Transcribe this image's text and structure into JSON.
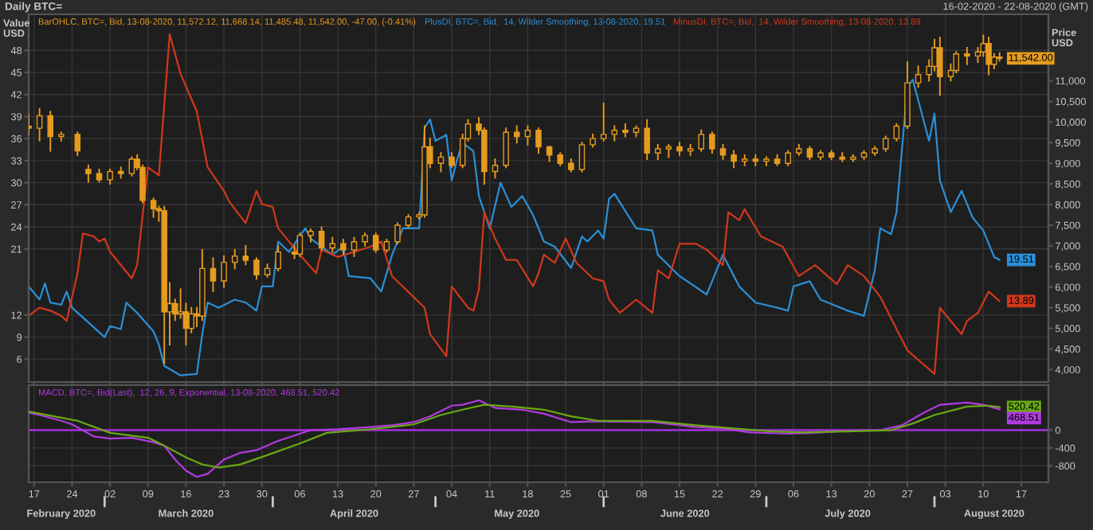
{
  "chart_data": [
    {
      "type": "candlestick",
      "title": "Daily BTC=",
      "subtitle": "16-02-2020 - 22-08-2020 (GMT)",
      "ylabel": "Value USD",
      "y2label": "Price USD",
      "xlim": [
        "2020-02-16",
        "2020-08-22"
      ],
      "xticks": [
        {
          "value": "2020-02-17",
          "label": null
        },
        {
          "value": "2020-02-24",
          "label": null
        },
        {
          "value": "2020-03-02",
          "label": null
        },
        {
          "value": "2020-03-09",
          "label": null
        },
        {
          "value": "2020-03-16",
          "label": null
        },
        {
          "value": "2020-03-23",
          "label": null
        },
        {
          "value": "2020-03-30",
          "label": null
        },
        {
          "value": "2020-04-06",
          "label": null
        },
        {
          "value": "2020-04-13",
          "label": null
        },
        {
          "value": "2020-04-20",
          "label": null
        },
        {
          "value": "2020-04-27",
          "label": null
        },
        {
          "value": "2020-05-04",
          "label": null
        },
        {
          "value": "2020-05-11",
          "label": null
        },
        {
          "value": "2020-05-18",
          "label": null
        },
        {
          "value": "2020-05-25",
          "label": null
        },
        {
          "value": "2020-06-01",
          "label": null
        },
        {
          "value": "2020-06-08",
          "label": null
        },
        {
          "value": "2020-06-15",
          "label": null
        },
        {
          "value": "2020-06-22",
          "label": null
        },
        {
          "value": "2020-06-29",
          "label": null
        },
        {
          "value": "2020-07-06",
          "label": null
        },
        {
          "value": "2020-07-13",
          "label": null
        },
        {
          "value": "2020-07-20",
          "label": null
        },
        {
          "value": "2020-07-27",
          "label": null
        },
        {
          "value": "2020-08-03",
          "label": null
        },
        {
          "value": "2020-08-10",
          "label": null
        },
        {
          "value": "2020-08-17",
          "label": null
        }
      ],
      "ylim": [
        2.9,
        52.9
      ],
      "yticks": [
        6,
        9,
        12,
        21,
        24,
        27,
        30,
        33,
        36,
        39,
        42,
        45,
        48
      ],
      "y2lim": [
        3700,
        12610
      ],
      "y2ticks": [
        {
          "value": 4000,
          "label": "4,000"
        },
        {
          "value": 4500,
          "label": "4,500"
        },
        {
          "value": 5000,
          "label": "5,000"
        },
        {
          "value": 5500,
          "label": "5,500"
        },
        {
          "value": 6000,
          "label": "6,000"
        },
        {
          "value": 6500,
          "label": "6,500"
        },
        {
          "value": 7000,
          "label": "7,000"
        },
        {
          "value": 7500,
          "label": "7,500"
        },
        {
          "value": 8000,
          "label": "8,000"
        },
        {
          "value": 8500,
          "label": "8,500"
        },
        {
          "value": 9000,
          "label": "9,000"
        },
        {
          "value": 9500,
          "label": "9,500"
        },
        {
          "value": 10000,
          "label": "10,000"
        },
        {
          "value": 10500,
          "label": "10,500"
        },
        {
          "value": 11000,
          "label": "11,000"
        }
      ],
      "tick_labels": "y",
      "grid": true,
      "legend": "top left",
      "series": [
        {
          "axis": "y2",
          "name": "BarOHLC, BTC=, Bid, 13-08-2020, 11,572.12, 11,668.14, 11,485.48, 11,542.00, -47.00, (-0.41%)",
          "color": "#e59b1e",
          "x": [
            "2020-02-16",
            "2020-02-18",
            "2020-02-20",
            "2020-02-22",
            "2020-02-25",
            "2020-02-27",
            "2020-02-29",
            "2020-03-02",
            "2020-03-04",
            "2020-03-06",
            "2020-03-07",
            "2020-03-08",
            "2020-03-10",
            "2020-03-11",
            "2020-03-12",
            "2020-03-13",
            "2020-03-14",
            "2020-03-15",
            "2020-03-16",
            "2020-03-17",
            "2020-03-18",
            "2020-03-19",
            "2020-03-21",
            "2020-03-23",
            "2020-03-25",
            "2020-03-27",
            "2020-03-29",
            "2020-03-31",
            "2020-04-02",
            "2020-04-05",
            "2020-04-06",
            "2020-04-08",
            "2020-04-10",
            "2020-04-12",
            "2020-04-14",
            "2020-04-16",
            "2020-04-18",
            "2020-04-20",
            "2020-04-22",
            "2020-04-24",
            "2020-04-26",
            "2020-04-28",
            "2020-04-29",
            "2020-04-30",
            "2020-05-02",
            "2020-05-04",
            "2020-05-06",
            "2020-05-07",
            "2020-05-09",
            "2020-05-10",
            "2020-05-12",
            "2020-05-14",
            "2020-05-16",
            "2020-05-18",
            "2020-05-20",
            "2020-05-22",
            "2020-05-24",
            "2020-05-26",
            "2020-05-28",
            "2020-05-30",
            "2020-06-01",
            "2020-06-03",
            "2020-06-05",
            "2020-06-07",
            "2020-06-09",
            "2020-06-11",
            "2020-06-13",
            "2020-06-15",
            "2020-06-17",
            "2020-06-19",
            "2020-06-21",
            "2020-06-23",
            "2020-06-25",
            "2020-06-27",
            "2020-06-29",
            "2020-07-01",
            "2020-07-03",
            "2020-07-05",
            "2020-07-07",
            "2020-07-09",
            "2020-07-11",
            "2020-07-13",
            "2020-07-15",
            "2020-07-17",
            "2020-07-19",
            "2020-07-21",
            "2020-07-23",
            "2020-07-25",
            "2020-07-27",
            "2020-07-29",
            "2020-07-31",
            "2020-08-01",
            "2020-08-02",
            "2020-08-04",
            "2020-08-05",
            "2020-08-07",
            "2020-08-09",
            "2020-08-10",
            "2020-08-11",
            "2020-08-12",
            "2020-08-13"
          ],
          "ohlc": [
            [
              9900,
              10190,
              9700,
              9850
            ],
            [
              9850,
              10320,
              9550,
              10150
            ],
            [
              10150,
              10250,
              9300,
              9650
            ],
            [
              9650,
              9750,
              9550,
              9700
            ],
            [
              9700,
              9750,
              9200,
              9300
            ],
            [
              8850,
              8950,
              8550,
              8750
            ],
            [
              8750,
              8850,
              8550,
              8600
            ],
            [
              8600,
              8850,
              8500,
              8800
            ],
            [
              8800,
              8900,
              8650,
              8750
            ],
            [
              8750,
              9150,
              8700,
              9100
            ],
            [
              9100,
              9200,
              8850,
              8900
            ],
            [
              8900,
              8950,
              8050,
              8100
            ],
            [
              8100,
              8150,
              7700,
              7900
            ],
            [
              7900,
              7950,
              7600,
              7850
            ],
            [
              7850,
              7950,
              4150,
              5400
            ],
            [
              5400,
              6100,
              4600,
              5600
            ],
            [
              5600,
              5700,
              5200,
              5350
            ],
            [
              5350,
              5950,
              5250,
              5400
            ],
            [
              5400,
              5600,
              4600,
              5000
            ],
            [
              5000,
              5500,
              4900,
              5350
            ],
            [
              5350,
              5500,
              5050,
              5300
            ],
            [
              5300,
              6900,
              5200,
              6450
            ],
            [
              6450,
              6700,
              5900,
              6150
            ],
            [
              6150,
              6750,
              6000,
              6600
            ],
            [
              6600,
              6900,
              6450,
              6750
            ],
            [
              6750,
              7000,
              6550,
              6650
            ],
            [
              6650,
              6700,
              6200,
              6300
            ],
            [
              6300,
              6550,
              6250,
              6450
            ],
            [
              6450,
              7000,
              6400,
              6850
            ],
            [
              6850,
              7000,
              6700,
              6800
            ],
            [
              6800,
              7300,
              6750,
              7250
            ],
            [
              7250,
              7400,
              7100,
              7350
            ],
            [
              7350,
              7450,
              6900,
              6950
            ],
            [
              6950,
              7200,
              6850,
              7050
            ],
            [
              7050,
              7150,
              6800,
              6900
            ],
            [
              6900,
              7200,
              6750,
              7100
            ],
            [
              7100,
              7300,
              7000,
              7250
            ],
            [
              7250,
              7300,
              6850,
              6900
            ],
            [
              6900,
              7150,
              6850,
              7100
            ],
            [
              7100,
              7550,
              7050,
              7500
            ],
            [
              7500,
              7750,
              7450,
              7700
            ],
            [
              7700,
              7800,
              7650,
              7750
            ],
            [
              7750,
              9900,
              7700,
              9400
            ],
            [
              9400,
              9600,
              8900,
              9000
            ],
            [
              9000,
              9250,
              8800,
              9150
            ],
            [
              9150,
              9250,
              8900,
              8950
            ],
            [
              8950,
              9700,
              8900,
              9600
            ],
            [
              9600,
              10050,
              9550,
              9950
            ],
            [
              9950,
              10100,
              9700,
              9800
            ],
            [
              9800,
              9850,
              8500,
              8800
            ],
            [
              8800,
              9100,
              8650,
              8950
            ],
            [
              8950,
              9850,
              8900,
              9750
            ],
            [
              9750,
              9900,
              9500,
              9650
            ],
            [
              9650,
              9900,
              9450,
              9800
            ],
            [
              9800,
              9850,
              9250,
              9400
            ],
            [
              9400,
              9400,
              9050,
              9200
            ],
            [
              9200,
              9250,
              8950,
              9000
            ],
            [
              9000,
              9100,
              8800,
              8850
            ],
            [
              8850,
              9500,
              8800,
              9450
            ],
            [
              9450,
              9700,
              9400,
              9600
            ],
            [
              9600,
              10450,
              9550,
              9700
            ],
            [
              9700,
              9900,
              9550,
              9800
            ],
            [
              9800,
              9950,
              9650,
              9750
            ],
            [
              9750,
              9900,
              9650,
              9850
            ],
            [
              9850,
              10050,
              9100,
              9250
            ],
            [
              9250,
              9450,
              9100,
              9350
            ],
            [
              9350,
              9450,
              9150,
              9400
            ],
            [
              9400,
              9500,
              9200,
              9300
            ],
            [
              9300,
              9450,
              9200,
              9350
            ],
            [
              9350,
              9800,
              9300,
              9700
            ],
            [
              9700,
              9750,
              9250,
              9350
            ],
            [
              9350,
              9450,
              9100,
              9200
            ],
            [
              9200,
              9300,
              8900,
              9050
            ],
            [
              9050,
              9200,
              8950,
              9100
            ],
            [
              9100,
              9200,
              8950,
              9050
            ],
            [
              9050,
              9150,
              8950,
              9100
            ],
            [
              9100,
              9200,
              8950,
              9000
            ],
            [
              9000,
              9300,
              8950,
              9250
            ],
            [
              9250,
              9450,
              9200,
              9350
            ],
            [
              9350,
              9400,
              9100,
              9150
            ],
            [
              9150,
              9300,
              9100,
              9250
            ],
            [
              9250,
              9300,
              9100,
              9150
            ],
            [
              9150,
              9250,
              9050,
              9100
            ],
            [
              9100,
              9200,
              9050,
              9150
            ],
            [
              9150,
              9300,
              9100,
              9250
            ],
            [
              9250,
              9400,
              9200,
              9350
            ],
            [
              9350,
              9650,
              9300,
              9600
            ],
            [
              9600,
              9950,
              9550,
              9900
            ],
            [
              9900,
              11450,
              9850,
              10950
            ],
            [
              10950,
              11350,
              10850,
              11150
            ],
            [
              11150,
              11500,
              11000,
              11350
            ],
            [
              11350,
              12000,
              11250,
              11800
            ],
            [
              11800,
              12050,
              10650,
              11100
            ],
            [
              11100,
              11400,
              11000,
              11250
            ],
            [
              11250,
              11700,
              11200,
              11650
            ],
            [
              11650,
              11800,
              11400,
              11600
            ],
            [
              11600,
              11800,
              11450,
              11700
            ],
            [
              11700,
              12100,
              11600,
              11900
            ],
            [
              11900,
              12050,
              11150,
              11400
            ],
            [
              11400,
              11650,
              11300,
              11572.12
            ],
            [
              11572.12,
              11668.14,
              11485.48,
              11542.0
            ]
          ],
          "value_labels": [
            null,
            null,
            null,
            null,
            null,
            null,
            null,
            null,
            null,
            null,
            null,
            null,
            null,
            null,
            null,
            null,
            null,
            null,
            null,
            null,
            null,
            null,
            null,
            null,
            null,
            null,
            null,
            null,
            null,
            null,
            null,
            null,
            null,
            null,
            null,
            null,
            null,
            null,
            null,
            null,
            null,
            null,
            null,
            null,
            null,
            null,
            null,
            null,
            null,
            null,
            null,
            null,
            null,
            null,
            null,
            null,
            null,
            null,
            null,
            null,
            null,
            null,
            null,
            null,
            null,
            null,
            null,
            null,
            null,
            null,
            null,
            null,
            null,
            null,
            null,
            null,
            null,
            null,
            null,
            null,
            null,
            null,
            null,
            null,
            null,
            null,
            null,
            null,
            null,
            null,
            null,
            null,
            null,
            null,
            null,
            null,
            null,
            null,
            null,
            null,
            "11,542.00"
          ]
        },
        {
          "type": "line",
          "axis": "y",
          "name": "PlusDI, BTC=, Bid,  14, Wilder Smoothing, 13-08-2020, 19.51",
          "color": "#2b8fd6",
          "x": [
            "2020-02-16",
            "2020-02-18",
            "2020-02-19",
            "2020-02-20",
            "2020-02-22",
            "2020-02-23",
            "2020-02-24",
            "2020-03-01",
            "2020-03-02",
            "2020-03-04",
            "2020-03-05",
            "2020-03-07",
            "2020-03-10",
            "2020-03-11",
            "2020-03-12",
            "2020-03-15",
            "2020-03-18",
            "2020-03-19",
            "2020-03-20",
            "2020-03-22",
            "2020-03-25",
            "2020-03-27",
            "2020-03-29",
            "2020-03-30",
            "2020-04-01",
            "2020-04-02",
            "2020-04-04",
            "2020-04-07",
            "2020-04-08",
            "2020-04-12",
            "2020-04-14",
            "2020-04-15",
            "2020-04-19",
            "2020-04-21",
            "2020-04-23",
            "2020-04-25",
            "2020-04-28",
            "2020-04-29",
            "2020-04-30",
            "2020-05-01",
            "2020-05-03",
            "2020-05-04",
            "2020-05-05",
            "2020-05-06",
            "2020-05-08",
            "2020-05-09",
            "2020-05-11",
            "2020-05-13",
            "2020-05-15",
            "2020-05-17",
            "2020-05-19",
            "2020-05-21",
            "2020-05-23",
            "2020-05-26",
            "2020-05-28",
            "2020-05-29",
            "2020-05-31",
            "2020-06-01",
            "2020-06-02",
            "2020-06-03",
            "2020-06-07",
            "2020-06-10",
            "2020-06-11",
            "2020-06-15",
            "2020-06-20",
            "2020-06-23",
            "2020-06-26",
            "2020-06-29",
            "2020-07-03",
            "2020-07-05",
            "2020-07-06",
            "2020-07-09",
            "2020-07-11",
            "2020-07-16",
            "2020-07-19",
            "2020-07-21",
            "2020-07-22",
            "2020-07-24",
            "2020-07-25",
            "2020-07-27",
            "2020-07-28",
            "2020-07-31",
            "2020-08-01",
            "2020-08-02",
            "2020-08-04",
            "2020-08-06",
            "2020-08-08",
            "2020-08-10",
            "2020-08-12",
            "2020-08-13"
          ],
          "values": [
            15.9,
            14.1,
            16.3,
            13.7,
            13.4,
            15.2,
            13.0,
            9.0,
            10.5,
            10.1,
            13.7,
            12.3,
            9.8,
            8.0,
            5.1,
            3.8,
            4.0,
            9.4,
            13.7,
            13.0,
            14.1,
            13.7,
            12.6,
            15.9,
            15.9,
            22.0,
            20.6,
            23.8,
            22.4,
            20.2,
            21.3,
            17.3,
            17.0,
            15.2,
            20.2,
            23.8,
            23.8,
            37.5,
            38.6,
            35.7,
            36.5,
            30.3,
            33.2,
            35.4,
            34.3,
            28.2,
            23.8,
            30.0,
            26.7,
            28.2,
            25.6,
            22.0,
            21.3,
            18.4,
            22.7,
            22.0,
            23.5,
            22.4,
            27.8,
            28.5,
            23.8,
            23.5,
            20.2,
            17.3,
            14.8,
            20.2,
            15.9,
            13.7,
            13.0,
            12.6,
            15.9,
            16.6,
            14.1,
            12.6,
            11.9,
            18.1,
            23.8,
            23.0,
            26.0,
            43.0,
            44.0,
            35.7,
            39.4,
            30.3,
            26.0,
            28.9,
            25.3,
            23.5,
            19.9,
            19.51
          ],
          "value_labels": [
            null,
            null,
            null,
            null,
            null,
            null,
            null,
            null,
            null,
            null,
            null,
            null,
            null,
            null,
            null,
            null,
            null,
            null,
            null,
            null,
            null,
            null,
            null,
            null,
            null,
            null,
            null,
            null,
            null,
            null,
            null,
            null,
            null,
            null,
            null,
            null,
            null,
            null,
            null,
            null,
            null,
            null,
            null,
            null,
            null,
            null,
            null,
            null,
            null,
            null,
            null,
            null,
            null,
            null,
            null,
            null,
            null,
            null,
            null,
            null,
            null,
            null,
            null,
            null,
            null,
            null,
            null,
            null,
            null,
            null,
            null,
            null,
            null,
            null,
            null,
            null,
            null,
            null,
            null,
            null,
            null,
            null,
            null,
            null,
            null,
            null,
            null,
            null,
            null,
            "19.51"
          ]
        },
        {
          "type": "line",
          "axis": "y",
          "name": "MinusDI, BTC=, Bid,  14, Wilder Smoothing, 13-08-2020, 13.89",
          "color": "#d0381c",
          "x": [
            "2020-02-16",
            "2020-02-18",
            "2020-02-20",
            "2020-02-22",
            "2020-02-23",
            "2020-02-25",
            "2020-02-26",
            "2020-02-28",
            "2020-02-29",
            "2020-03-01",
            "2020-03-02",
            "2020-03-06",
            "2020-03-07",
            "2020-03-09",
            "2020-03-11",
            "2020-03-13",
            "2020-03-15",
            "2020-03-18",
            "2020-03-20",
            "2020-03-23",
            "2020-03-24",
            "2020-03-27",
            "2020-03-29",
            "2020-03-30",
            "2020-04-01",
            "2020-04-02",
            "2020-04-06",
            "2020-04-09",
            "2020-04-10",
            "2020-04-13",
            "2020-04-19",
            "2020-04-21",
            "2020-04-23",
            "2020-04-29",
            "2020-04-30",
            "2020-05-03",
            "2020-05-04",
            "2020-05-07",
            "2020-05-08",
            "2020-05-09",
            "2020-05-10",
            "2020-05-12",
            "2020-05-14",
            "2020-05-16",
            "2020-05-19",
            "2020-05-20",
            "2020-05-21",
            "2020-05-23",
            "2020-05-25",
            "2020-05-27",
            "2020-05-30",
            "2020-06-01",
            "2020-06-02",
            "2020-06-04",
            "2020-06-07",
            "2020-06-10",
            "2020-06-11",
            "2020-06-13",
            "2020-06-15",
            "2020-06-18",
            "2020-06-20",
            "2020-06-23",
            "2020-06-24",
            "2020-06-26",
            "2020-06-27",
            "2020-06-30",
            "2020-07-04",
            "2020-07-07",
            "2020-07-10",
            "2020-07-14",
            "2020-07-16",
            "2020-07-19",
            "2020-07-22",
            "2020-07-25",
            "2020-07-27",
            "2020-08-01",
            "2020-08-02",
            "2020-08-06",
            "2020-08-07",
            "2020-08-09",
            "2020-08-11",
            "2020-08-13"
          ],
          "values": [
            11.9,
            13.0,
            12.6,
            11.9,
            11.2,
            17.7,
            23.1,
            22.7,
            22.0,
            22.4,
            20.6,
            17.0,
            18.8,
            32.1,
            31.0,
            50.2,
            44.8,
            39.7,
            32.1,
            28.9,
            27.4,
            24.5,
            28.9,
            27.1,
            26.7,
            23.8,
            20.2,
            17.7,
            20.9,
            19.9,
            21.3,
            22.0,
            17.3,
            13.0,
            9.4,
            6.4,
            15.9,
            13.0,
            12.6,
            15.5,
            26.0,
            22.4,
            19.5,
            19.5,
            15.9,
            17.7,
            20.2,
            19.1,
            22.4,
            19.1,
            17.0,
            16.6,
            14.1,
            12.3,
            14.1,
            12.3,
            18.1,
            17.0,
            21.7,
            21.7,
            20.9,
            18.8,
            26.0,
            24.9,
            26.4,
            22.7,
            21.3,
            17.3,
            18.8,
            16.2,
            18.8,
            17.3,
            14.5,
            10.1,
            7.2,
            4.0,
            13.0,
            9.4,
            11.2,
            12.3,
            15.2,
            13.89
          ],
          "value_labels": [
            null,
            null,
            null,
            null,
            null,
            null,
            null,
            null,
            null,
            null,
            null,
            null,
            null,
            null,
            null,
            null,
            null,
            null,
            null,
            null,
            null,
            null,
            null,
            null,
            null,
            null,
            null,
            null,
            null,
            null,
            null,
            null,
            null,
            null,
            null,
            null,
            null,
            null,
            null,
            null,
            null,
            null,
            null,
            null,
            null,
            null,
            null,
            null,
            null,
            null,
            null,
            null,
            null,
            null,
            null,
            null,
            null,
            null,
            null,
            null,
            null,
            null,
            null,
            null,
            null,
            null,
            null,
            null,
            null,
            null,
            null,
            null,
            null,
            null,
            null,
            null,
            null,
            null,
            null,
            null,
            null,
            "13.89"
          ]
        }
      ]
    },
    {
      "type": "line",
      "xlim": [
        "2020-02-16",
        "2020-08-22"
      ],
      "xticks": [
        {
          "value": "2020-02-17",
          "label": "17"
        },
        {
          "value": "2020-02-24",
          "label": "24"
        },
        {
          "value": "2020-03-02",
          "label": "02"
        },
        {
          "value": "2020-03-09",
          "label": "09"
        },
        {
          "value": "2020-03-16",
          "label": "16"
        },
        {
          "value": "2020-03-23",
          "label": "23"
        },
        {
          "value": "2020-03-30",
          "label": "30"
        },
        {
          "value": "2020-04-06",
          "label": "06"
        },
        {
          "value": "2020-04-13",
          "label": "13"
        },
        {
          "value": "2020-04-20",
          "label": "20"
        },
        {
          "value": "2020-04-27",
          "label": "27"
        },
        {
          "value": "2020-05-04",
          "label": "04"
        },
        {
          "value": "2020-05-11",
          "label": "11"
        },
        {
          "value": "2020-05-18",
          "label": "18"
        },
        {
          "value": "2020-05-25",
          "label": "25"
        },
        {
          "value": "2020-06-01",
          "label": "01"
        },
        {
          "value": "2020-06-08",
          "label": "08"
        },
        {
          "value": "2020-06-15",
          "label": "15"
        },
        {
          "value": "2020-06-22",
          "label": "22"
        },
        {
          "value": "2020-06-29",
          "label": "29"
        },
        {
          "value": "2020-07-06",
          "label": "06"
        },
        {
          "value": "2020-07-13",
          "label": "13"
        },
        {
          "value": "2020-07-20",
          "label": "20"
        },
        {
          "value": "2020-07-27",
          "label": "27"
        },
        {
          "value": "2020-08-03",
          "label": "03"
        },
        {
          "value": "2020-08-10",
          "label": "10"
        },
        {
          "value": "2020-08-17",
          "label": "17"
        }
      ],
      "x2lim": [
        "2020-02-16",
        "2020-08-22"
      ],
      "x2ticks": [
        {
          "value": "2020-02-22",
          "label": "February 2020"
        },
        {
          "value": "2020-03-01",
          "label": null
        },
        {
          "value": "2020-03-16",
          "label": "March 2020"
        },
        {
          "value": "2020-04-01",
          "label": null
        },
        {
          "value": "2020-04-16",
          "label": "April 2020"
        },
        {
          "value": "2020-05-01",
          "label": null
        },
        {
          "value": "2020-05-16",
          "label": "May 2020"
        },
        {
          "value": "2020-06-01",
          "label": null
        },
        {
          "value": "2020-06-16",
          "label": "June 2020"
        },
        {
          "value": "2020-07-01",
          "label": null
        },
        {
          "value": "2020-07-16",
          "label": "July 2020"
        },
        {
          "value": "2020-08-01",
          "label": null
        },
        {
          "value": "2020-08-12",
          "label": "August 2020"
        }
      ],
      "y2lim": [
        -1170,
        1010
      ],
      "y2ticks": [
        0,
        -400,
        -800
      ],
      "grid": true,
      "legend": "top left",
      "ref_lines": [
        {
          "axis": "y2",
          "value": 0,
          "color": "#a62fe0"
        }
      ],
      "series": [
        {
          "axis": "y2",
          "name": "MACD, BTC=, Bid(Last),  12, 26, 9, Exponential, 13-08-2020, 468.51, 520.42",
          "color": "#b13ae0",
          "x": [
            "2020-02-16",
            "2020-02-18",
            "2020-02-22",
            "2020-02-24",
            "2020-02-28",
            "2020-03-02",
            "2020-03-06",
            "2020-03-10",
            "2020-03-12",
            "2020-03-14",
            "2020-03-16",
            "2020-03-18",
            "2020-03-20",
            "2020-03-23",
            "2020-03-26",
            "2020-03-29",
            "2020-04-02",
            "2020-04-08",
            "2020-04-13",
            "2020-04-19",
            "2020-04-23",
            "2020-04-27",
            "2020-04-30",
            "2020-05-04",
            "2020-05-06",
            "2020-05-09",
            "2020-05-12",
            "2020-05-17",
            "2020-05-21",
            "2020-05-26",
            "2020-05-31",
            "2020-06-03",
            "2020-06-10",
            "2020-06-18",
            "2020-06-23",
            "2020-06-28",
            "2020-07-05",
            "2020-07-10",
            "2020-07-16",
            "2020-07-22",
            "2020-07-26",
            "2020-07-30",
            "2020-08-02",
            "2020-08-07",
            "2020-08-10",
            "2020-08-13"
          ],
          "values": [
            390,
            340,
            210,
            130,
            -140,
            -190,
            -170,
            -270,
            -350,
            -660,
            -910,
            -1050,
            -980,
            -660,
            -510,
            -450,
            -240,
            0,
            20,
            70,
            110,
            180,
            310,
            550,
            570,
            670,
            500,
            460,
            370,
            180,
            200,
            190,
            180,
            70,
            40,
            -50,
            -80,
            -60,
            -10,
            0,
            110,
            390,
            570,
            620,
            570,
            468.51
          ],
          "value_labels": [
            null,
            null,
            null,
            null,
            null,
            null,
            null,
            null,
            null,
            null,
            null,
            null,
            null,
            null,
            null,
            null,
            null,
            null,
            null,
            null,
            null,
            null,
            null,
            null,
            null,
            null,
            null,
            null,
            null,
            null,
            null,
            null,
            null,
            null,
            null,
            null,
            null,
            null,
            null,
            null,
            null,
            null,
            null,
            null,
            null,
            "468.51"
          ]
        },
        {
          "axis": "y2",
          "color": "#6aa815",
          "x": [
            "2020-02-16",
            "2020-02-22",
            "2020-02-25",
            "2020-03-02",
            "2020-03-09",
            "2020-03-12",
            "2020-03-16",
            "2020-03-19",
            "2020-03-22",
            "2020-03-26",
            "2020-03-31",
            "2020-04-06",
            "2020-04-11",
            "2020-04-19",
            "2020-04-27",
            "2020-05-02",
            "2020-05-06",
            "2020-05-10",
            "2020-05-15",
            "2020-05-21",
            "2020-05-26",
            "2020-05-31",
            "2020-06-10",
            "2020-06-18",
            "2020-06-25",
            "2020-07-02",
            "2020-07-08",
            "2020-07-16",
            "2020-07-24",
            "2020-07-28",
            "2020-08-01",
            "2020-08-07",
            "2020-08-11",
            "2020-08-13"
          ],
          "values": [
            420,
            280,
            210,
            -60,
            -170,
            -350,
            -610,
            -770,
            -840,
            -770,
            -560,
            -300,
            -60,
            20,
            130,
            340,
            460,
            570,
            530,
            460,
            310,
            210,
            210,
            110,
            40,
            -30,
            -50,
            -30,
            0,
            150,
            340,
            530,
            550,
            520.42
          ],
          "value_labels": [
            null,
            null,
            null,
            null,
            null,
            null,
            null,
            null,
            null,
            null,
            null,
            null,
            null,
            null,
            null,
            null,
            null,
            null,
            null,
            null,
            null,
            null,
            null,
            null,
            null,
            null,
            null,
            null,
            null,
            null,
            null,
            null,
            null,
            "520.42"
          ]
        }
      ]
    }
  ]
}
